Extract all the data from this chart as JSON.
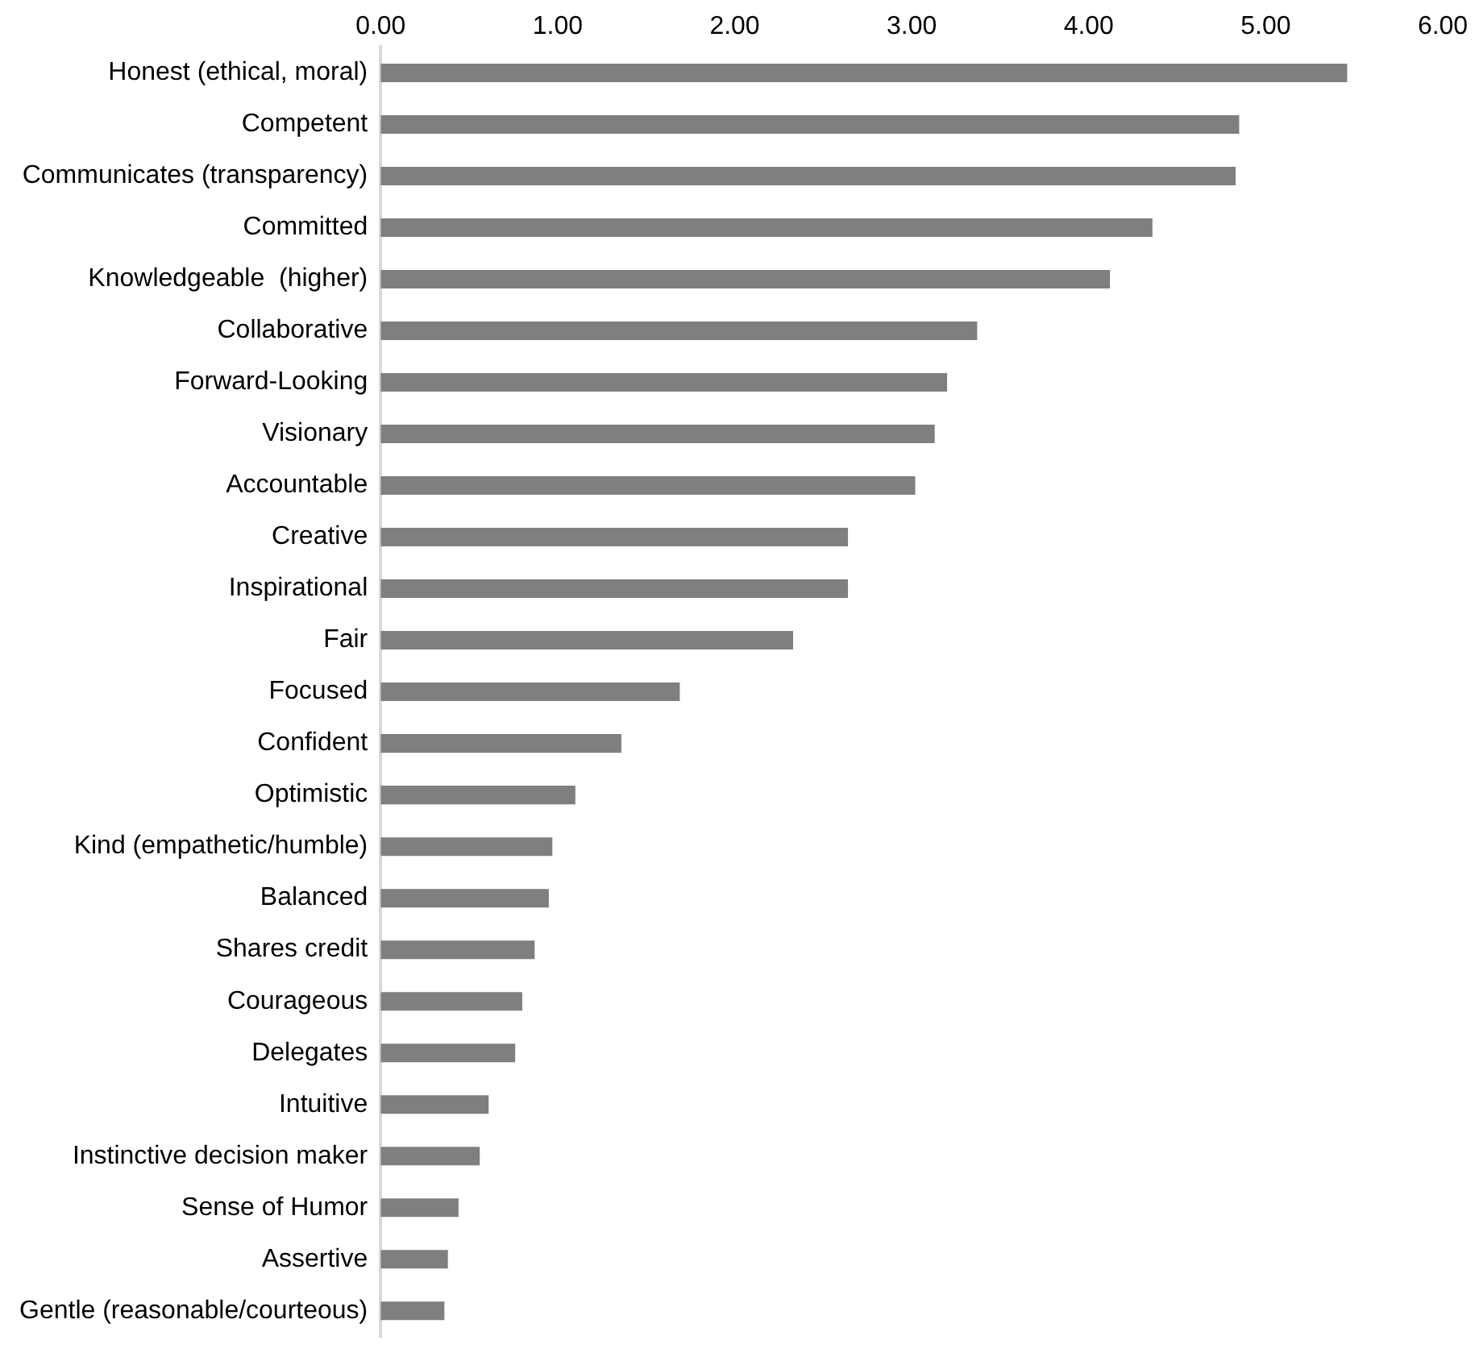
{
  "chart_data": {
    "type": "bar",
    "orientation": "horizontal",
    "categories": [
      "Honest (ethical, moral)",
      "Competent",
      "Communicates (transparency)",
      "Committed",
      "Knowledgeable  (higher)",
      "Collaborative",
      "Forward-Looking",
      "Visionary",
      "Accountable",
      "Creative",
      "Inspirational",
      "Fair",
      "Focused",
      "Confident",
      "Optimistic",
      "Kind (empathetic/humble)",
      "Balanced",
      "Shares credit",
      "Courageous",
      "Delegates",
      "Intuitive",
      "Instinctive decision maker",
      "Sense of Humor",
      "Assertive",
      "Gentle (reasonable/courteous)"
    ],
    "values": [
      5.46,
      4.85,
      4.83,
      4.36,
      4.12,
      3.37,
      3.2,
      3.13,
      3.02,
      2.64,
      2.64,
      2.33,
      1.69,
      1.36,
      1.1,
      0.97,
      0.95,
      0.87,
      0.8,
      0.76,
      0.61,
      0.56,
      0.44,
      0.38,
      0.36
    ],
    "color": "#7f7f7f",
    "xlim": [
      0,
      6
    ],
    "xticks": [
      {
        "value": 0,
        "label": "0.00"
      },
      {
        "value": 1,
        "label": "1.00"
      },
      {
        "value": 2,
        "label": "2.00"
      },
      {
        "value": 3,
        "label": "3.00"
      },
      {
        "value": 4,
        "label": "4.00"
      },
      {
        "value": 5,
        "label": "5.00"
      },
      {
        "value": 6,
        "label": "6.00"
      }
    ],
    "grid": false,
    "legend": false
  }
}
